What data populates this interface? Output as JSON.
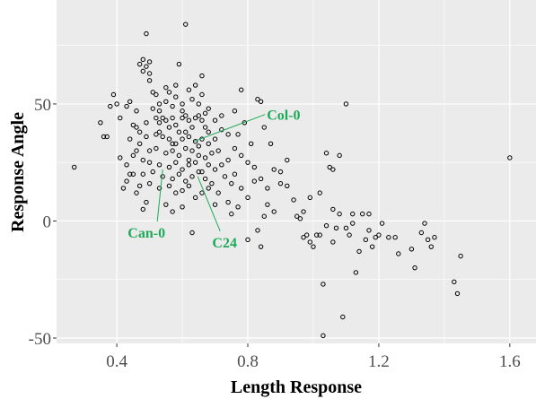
{
  "chart_data": {
    "type": "scatter",
    "x_label": "Length Response",
    "y_label": "Response Angle",
    "xlim": [
      0.216,
      1.68
    ],
    "ylim": [
      -52.3,
      94.4
    ],
    "xticks": [
      0.4,
      0.8,
      1.2,
      1.6
    ],
    "yticks": [
      -50,
      0,
      50
    ],
    "xminor": [
      0.6,
      1.0,
      1.4
    ],
    "yminor": [
      -25,
      25,
      75
    ],
    "grid": true,
    "color": "#000000",
    "annotation_color": "#1faa59",
    "x": [
      0.27,
      0.35,
      0.36,
      0.37,
      0.38,
      0.39,
      0.4,
      0.41,
      0.41,
      0.42,
      0.43,
      0.43,
      0.44,
      0.44,
      0.45,
      0.45,
      0.46,
      0.46,
      0.47,
      0.47,
      0.48,
      0.48,
      0.48,
      0.49,
      0.49,
      0.49,
      0.5,
      0.5,
      0.5,
      0.51,
      0.52,
      0.53,
      0.55,
      0.56,
      0.58,
      0.59,
      0.6,
      0.61,
      0.62,
      0.64,
      0.66,
      0.65,
      0.68,
      0.72,
      0.76,
      0.77,
      0.78,
      0.79,
      0.83,
      0.84,
      0.85,
      0.87,
      0.52,
      0.53,
      0.54,
      0.55,
      0.56,
      0.57,
      0.58,
      0.59,
      0.6,
      0.61,
      0.62,
      0.63,
      0.64,
      0.65,
      0.66,
      0.67,
      0.52,
      0.54,
      0.56,
      0.58,
      0.6,
      0.62,
      0.64,
      0.66,
      0.68,
      0.7,
      0.5,
      0.52,
      0.55,
      0.57,
      0.59,
      0.61,
      0.63,
      0.65,
      0.67,
      0.69,
      0.71,
      0.5,
      0.53,
      0.56,
      0.58,
      0.6,
      0.62,
      0.64,
      0.66,
      0.68,
      0.7,
      0.72,
      0.74,
      0.48,
      0.51,
      0.54,
      0.57,
      0.59,
      0.61,
      0.63,
      0.65,
      0.67,
      0.69,
      0.73,
      0.76,
      0.47,
      0.5,
      0.53,
      0.56,
      0.58,
      0.6,
      0.62,
      0.64,
      0.66,
      0.68,
      0.71,
      0.75,
      0.78,
      0.8,
      0.55,
      0.57,
      0.6,
      0.63,
      0.7,
      0.74,
      0.46,
      0.47,
      0.48,
      0.49,
      0.49,
      0.51,
      0.53,
      0.57,
      0.6,
      0.63,
      0.66,
      0.7,
      0.72,
      0.74,
      0.76,
      0.78,
      0.8,
      0.81,
      0.82,
      0.84,
      0.86,
      0.88,
      0.9,
      0.75,
      0.77,
      0.62,
      0.68,
      0.43,
      0.44,
      0.45,
      0.46,
      0.55,
      0.58,
      0.53,
      0.57,
      0.61,
      0.65,
      0.67,
      0.8,
      0.82,
      0.83,
      0.84,
      0.85,
      0.86,
      0.88,
      0.9,
      0.92,
      0.92,
      0.94,
      0.95,
      0.96,
      0.97,
      0.98,
      0.99,
      1.0,
      1.01,
      1.02,
      1.03,
      1.03,
      1.04,
      1.05,
      1.06,
      1.06,
      1.07,
      1.08,
      1.08,
      1.09,
      1.1,
      1.1,
      1.11,
      1.12,
      1.13,
      1.14,
      1.15,
      1.16,
      1.17,
      1.18,
      1.19,
      1.2,
      1.21,
      1.23,
      1.25,
      1.26,
      1.3,
      1.31,
      1.33,
      1.34,
      1.35,
      1.36,
      1.37,
      1.43,
      1.44,
      1.45,
      1.6,
      0.97,
      1.02,
      1.06,
      0.99,
      1.04,
      1.12,
      1.17
    ],
    "y": [
      23,
      42,
      36,
      36,
      49,
      54,
      50,
      44,
      27,
      14,
      17,
      49,
      51,
      35,
      41,
      20,
      12,
      47,
      38,
      67,
      69,
      64,
      5,
      8,
      80,
      66,
      68,
      63,
      60,
      55,
      54,
      50,
      57,
      55,
      53,
      67,
      50,
      84,
      56,
      58,
      62,
      50,
      48,
      45,
      47,
      37,
      56,
      42,
      52,
      51,
      40,
      33,
      44,
      42,
      44,
      43,
      40,
      44,
      41,
      38,
      44,
      45,
      43,
      40,
      44,
      45,
      43,
      46,
      37,
      36,
      35,
      33,
      35,
      36,
      34,
      35,
      33,
      35,
      30,
      31,
      29,
      30,
      28,
      31,
      30,
      28,
      27,
      29,
      30,
      25,
      24,
      23,
      25,
      22,
      24,
      25,
      21,
      24,
      22,
      24,
      26,
      20,
      21,
      19,
      18,
      20,
      17,
      19,
      21,
      18,
      16,
      19,
      20,
      15,
      16,
      14,
      15,
      12,
      13,
      15,
      10,
      12,
      14,
      12,
      16,
      14,
      10,
      7,
      4,
      6,
      -5,
      7,
      8,
      30,
      33,
      26,
      36,
      42,
      48,
      47,
      49,
      47,
      52,
      54,
      43,
      39,
      37,
      31,
      28,
      25,
      33,
      23,
      18,
      14,
      22,
      16,
      3,
      6,
      26,
      38,
      24,
      20,
      28,
      40,
      51,
      58,
      38,
      33,
      38,
      32,
      40,
      -8,
      17,
      -4,
      -11,
      2,
      7,
      4,
      21,
      15,
      26,
      9,
      2,
      1,
      -7,
      -6,
      -9,
      -11,
      -6,
      12,
      -27,
      -49,
      29,
      23,
      22,
      -9,
      -3,
      28,
      3,
      -41,
      50,
      -3,
      -6,
      -1,
      -22,
      -13,
      3,
      -8,
      -4,
      -11,
      -7,
      -6,
      -1,
      -7,
      -7,
      -14,
      -12,
      -20,
      -5,
      -1,
      -8,
      -11,
      -7,
      -26,
      -31,
      -15,
      27,
      4,
      -6,
      5,
      10,
      -2,
      3,
      3
    ],
    "annotations": [
      {
        "text": "Col-0",
        "x": 0.636,
        "y": 34
      },
      {
        "text": "Can-0",
        "x": 0.54,
        "y": 22
      },
      {
        "text": "C24",
        "x": 0.647,
        "y": 19
      }
    ]
  }
}
